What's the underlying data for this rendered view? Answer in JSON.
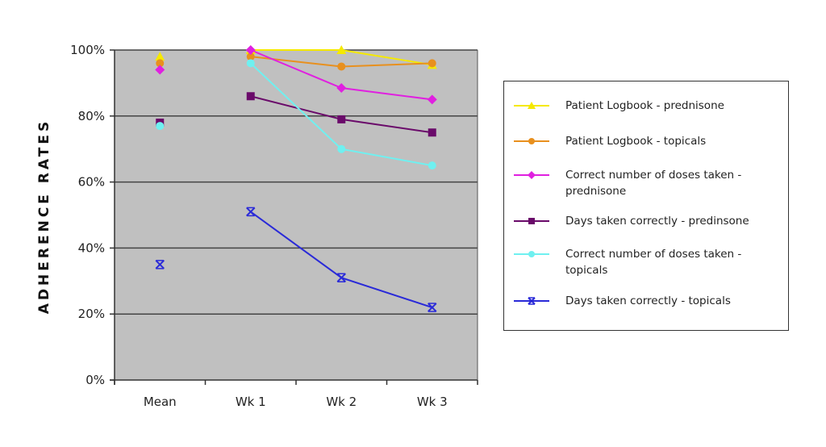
{
  "chart_data": {
    "type": "line",
    "title": "",
    "xlabel": "",
    "ylabel": "ADHERENCE RATES",
    "ylim": [
      0,
      100
    ],
    "y_ticks": [
      "0%",
      "20%",
      "40%",
      "60%",
      "80%",
      "100%"
    ],
    "y_tick_values": [
      0,
      20,
      40,
      60,
      80,
      100
    ],
    "categories": [
      "Mean",
      "Wk 1",
      "Wk 2",
      "Wk 3"
    ],
    "grid": true,
    "legend_position": "right",
    "series": [
      {
        "name": "Patient Logbook - prednisone",
        "color": "#f5e900",
        "marker": "triangle",
        "values": [
          98,
          100,
          100,
          95.5
        ],
        "mean_connected": false
      },
      {
        "name": "Patient Logbook - topicals",
        "color": "#e8901e",
        "marker": "circle",
        "values": [
          96,
          98,
          95,
          96
        ],
        "mean_connected": false
      },
      {
        "name": "Correct number of doses taken - prednisone",
        "color": "#e020e0",
        "marker": "diamond",
        "values": [
          94,
          100,
          88.5,
          85
        ],
        "mean_connected": false
      },
      {
        "name": "Days taken correctly - predinsone",
        "color": "#6a0a6a",
        "marker": "square",
        "values": [
          78,
          86,
          79,
          75
        ],
        "mean_connected": false
      },
      {
        "name": "Correct number of doses taken - topicals",
        "color": "#6ff0f0",
        "marker": "circle",
        "values": [
          77,
          96,
          70,
          65
        ],
        "mean_connected": false
      },
      {
        "name": "Days taken correctly - topicals",
        "color": "#2a2ad8",
        "marker": "x",
        "values": [
          35,
          51,
          31,
          22
        ],
        "mean_connected": false
      }
    ]
  },
  "colors": {
    "plot_background": "#c0c0c0",
    "gridline": "#444444"
  }
}
